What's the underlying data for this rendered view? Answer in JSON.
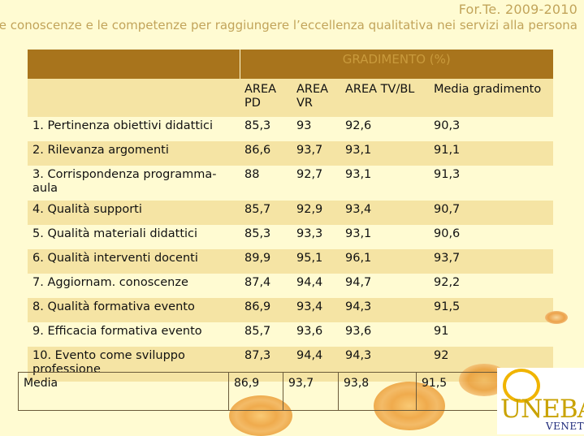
{
  "header": {
    "title": "For.Te. 2009-2010",
    "subtitle": "Le conoscenze e le competenze per raggiungere l’eccellenza qualitativa nei servizi alla persona"
  },
  "table": {
    "group_header": "GRADIMENTO (%)",
    "columns": [
      "AREA PD",
      "AREA VR",
      "AREA TV/BL",
      "Media gradimento"
    ],
    "rows": [
      {
        "label": "1. Pertinenza obiettivi didattici",
        "values": [
          "85,3",
          "93",
          "92,6",
          "90,3"
        ]
      },
      {
        "label": "2. Rilevanza argomenti",
        "values": [
          "86,6",
          "93,7",
          "93,1",
          "91,1"
        ]
      },
      {
        "label": "3. Corrispondenza programma-aula",
        "values": [
          "88",
          "92,7",
          "93,1",
          "91,3"
        ]
      },
      {
        "label": "4. Qualità supporti",
        "values": [
          "85,7",
          "92,9",
          "93,4",
          "90,7"
        ]
      },
      {
        "label": "5. Qualità materiali didattici",
        "values": [
          "85,3",
          "93,3",
          "93,1",
          "90,6"
        ]
      },
      {
        "label": "6. Qualità interventi docenti",
        "values": [
          "89,9",
          "95,1",
          "96,1",
          "93,7"
        ]
      },
      {
        "label": "7. Aggiornam. conoscenze",
        "values": [
          "87,4",
          "94,4",
          "94,7",
          "92,2"
        ]
      },
      {
        "label": "8.  Qualità formativa evento",
        "values": [
          "86,9",
          "93,4",
          "94,3",
          "91,5"
        ]
      },
      {
        "label": "9. Efficacia formativa evento",
        "values": [
          "85,7",
          "93,6",
          "93,6",
          "91"
        ]
      },
      {
        "label": "10. Evento come sviluppo professione",
        "values": [
          "87,3",
          "94,4",
          "94,3",
          "92"
        ]
      }
    ],
    "media": {
      "label": "Media",
      "values": [
        "86,9",
        "93,7",
        "93,8",
        "91,5"
      ]
    }
  },
  "logo": {
    "name": "UNEBA",
    "region": "VENETO"
  },
  "colors": {
    "header_band": "#a8741c",
    "stripe": "#f5e4a4",
    "background": "#fffbd2",
    "title": "#c2a45a"
  }
}
